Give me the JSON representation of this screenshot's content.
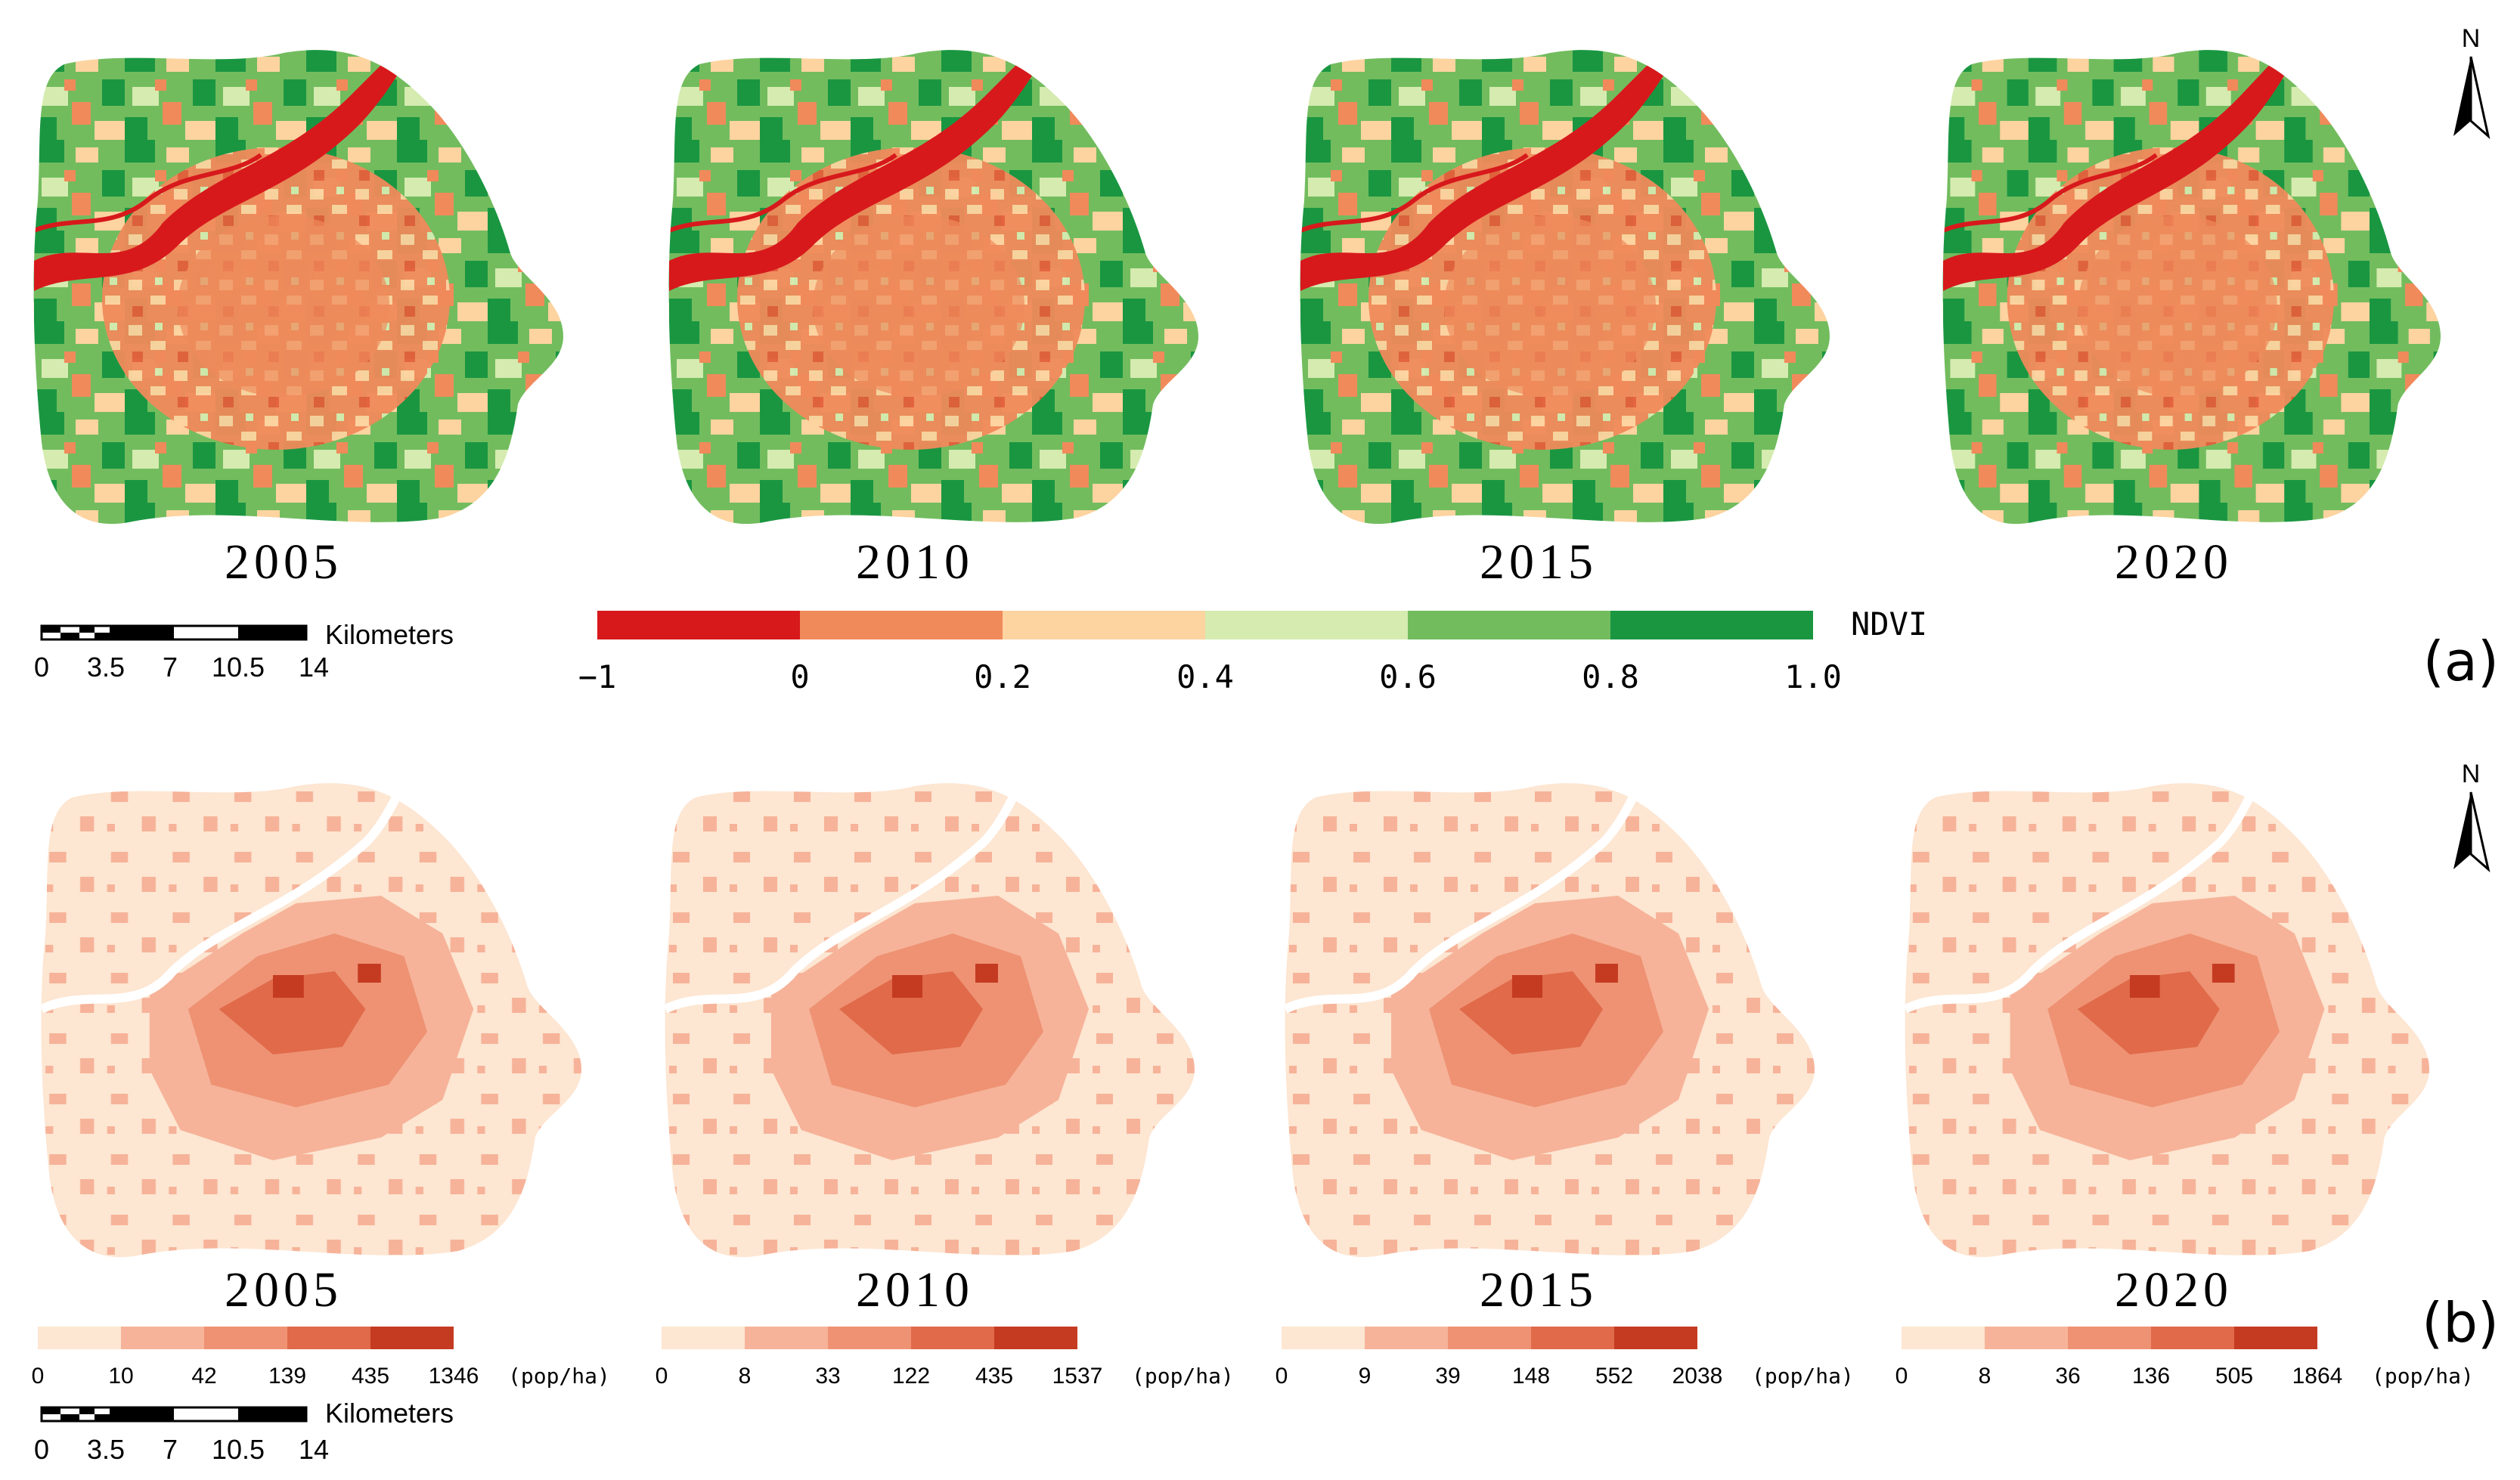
{
  "panels": {
    "a": {
      "label": "(a)",
      "years": [
        "2005",
        "2010",
        "2015",
        "2020"
      ],
      "legend": {
        "title": "NDVI",
        "tick_labels": [
          "−1",
          "0",
          "0.2",
          "0.4",
          "0.6",
          "0.8",
          "1.0"
        ],
        "colors": [
          "#d7191c",
          "#f08a5b",
          "#fdd3a0",
          "#d5ebb0",
          "#72bc5e",
          "#1a9641"
        ]
      }
    },
    "b": {
      "label": "(b)",
      "years": [
        "2005",
        "2010",
        "2015",
        "2020"
      ],
      "unit": "(pop/ha)",
      "colors": [
        "#fde6d2",
        "#f6b399",
        "#ee9273",
        "#e06a4a",
        "#c53b22"
      ],
      "legends": [
        {
          "year": "2005",
          "breaks": [
            "0",
            "10",
            "42",
            "139",
            "435",
            "1346"
          ]
        },
        {
          "year": "2010",
          "breaks": [
            "0",
            "8",
            "33",
            "122",
            "435",
            "1537"
          ]
        },
        {
          "year": "2015",
          "breaks": [
            "0",
            "9",
            "39",
            "148",
            "552",
            "2038"
          ]
        },
        {
          "year": "2020",
          "breaks": [
            "0",
            "8",
            "36",
            "136",
            "505",
            "1864"
          ]
        }
      ]
    }
  },
  "scale_bar": {
    "unit": "Kilometers",
    "ticks": [
      "0",
      "3.5",
      "7",
      "10.5",
      "14"
    ]
  },
  "north_arrow": {
    "label": "N"
  }
}
